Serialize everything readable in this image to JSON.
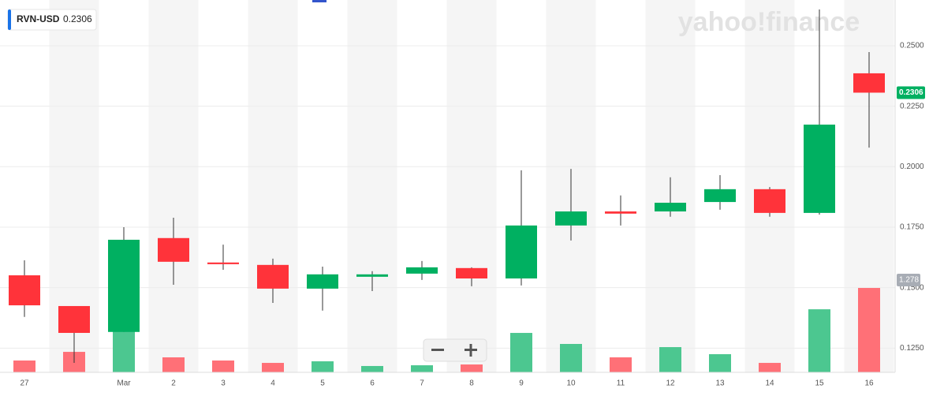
{
  "chart_data": {
    "type": "candlestick",
    "symbol": "RVN-USD",
    "watermark": "yahoo!finance",
    "categories": [
      "27",
      null,
      "Mar",
      "2",
      "3",
      "4",
      "5",
      "6",
      "7",
      "8",
      "9",
      "10",
      "11",
      "12",
      "13",
      "14",
      "15",
      "16"
    ],
    "open": [
      0.1551,
      0.1424,
      0.1317,
      0.1705,
      0.1604,
      0.1594,
      0.1496,
      0.1545,
      0.1558,
      0.1581,
      0.1538,
      0.1757,
      0.1815,
      0.1815,
      0.1854,
      0.1907,
      0.1809,
      0.2386
    ],
    "high": [
      0.1613,
      0.1424,
      0.175,
      0.1789,
      0.1678,
      0.162,
      0.1587,
      0.1568,
      0.161,
      0.1584,
      0.1985,
      0.1991,
      0.1881,
      0.1956,
      0.1965,
      0.1916,
      0.265,
      0.2474
    ],
    "low": [
      0.1379,
      0.1189,
      0.1317,
      0.1512,
      0.1574,
      0.1437,
      0.1405,
      0.1486,
      0.1532,
      0.1506,
      0.1509,
      0.1695,
      0.1757,
      0.1793,
      0.1822,
      0.1793,
      0.1802,
      0.2079
    ],
    "close": [
      0.1427,
      0.1313,
      0.1698,
      0.1607,
      0.1597,
      0.1496,
      0.1555,
      0.1555,
      0.1584,
      0.1538,
      0.1757,
      0.1815,
      0.1806,
      0.1851,
      0.1907,
      0.1809,
      0.2174,
      0.2306
    ],
    "volume": [
      0.179,
      0.31,
      0.729,
      0.227,
      0.179,
      0.143,
      0.167,
      0.096,
      0.107,
      0.119,
      0.597,
      0.43,
      0.227,
      0.382,
      0.275,
      0.143,
      0.955,
      1.278
    ],
    "up_color": "#00b061",
    "down_color": "#ff333a",
    "up_volume_color": "#4cc790",
    "down_volume_color": "#ff7077",
    "ylim": [
      0.115,
      0.2689
    ],
    "yticks": [
      {
        "value": 0.125,
        "label": "0.1250"
      },
      {
        "value": 0.15,
        "label": "0.1500"
      },
      {
        "value": 0.175,
        "label": "0.1750"
      },
      {
        "value": 0.2,
        "label": "0.2000"
      },
      {
        "value": 0.225,
        "label": "0.2250"
      },
      {
        "value": 0.25,
        "label": "0.2500"
      }
    ],
    "grid": true
  }
}
